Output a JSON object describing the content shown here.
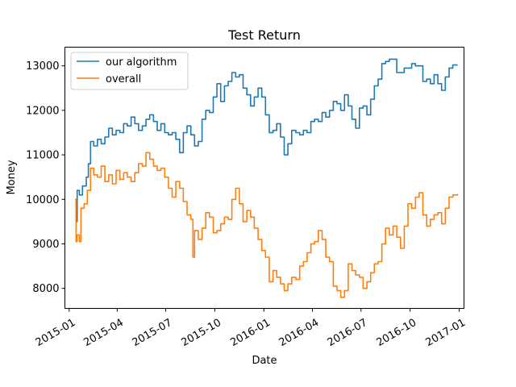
{
  "chart_data": {
    "type": "line",
    "title": "Test Return",
    "xlabel": "Date",
    "ylabel": "Money",
    "x_axis": "date",
    "xlim": [
      "2014-12-24",
      "2017-01-10"
    ],
    "ylim": [
      7550,
      13420
    ],
    "x_ticks": [
      "2015-01",
      "2015-04",
      "2015-07",
      "2015-10",
      "2016-01",
      "2016-04",
      "2016-07",
      "2016-10",
      "2017-01"
    ],
    "y_ticks": [
      8000,
      9000,
      10000,
      11000,
      12000,
      13000
    ],
    "grid": false,
    "legend": "upper left",
    "series": [
      {
        "name": "our algorithm",
        "color": "#1f77b4",
        "points": [
          [
            "2015-01-12",
            10000
          ],
          [
            "2015-01-14",
            9500
          ],
          [
            "2015-01-16",
            10200
          ],
          [
            "2015-01-20",
            10100
          ],
          [
            "2015-01-26",
            10300
          ],
          [
            "2015-02-02",
            10500
          ],
          [
            "2015-02-06",
            10800
          ],
          [
            "2015-02-10",
            11300
          ],
          [
            "2015-02-16",
            11200
          ],
          [
            "2015-02-23",
            11350
          ],
          [
            "2015-03-02",
            11250
          ],
          [
            "2015-03-09",
            11400
          ],
          [
            "2015-03-16",
            11600
          ],
          [
            "2015-03-23",
            11450
          ],
          [
            "2015-03-30",
            11550
          ],
          [
            "2015-04-06",
            11500
          ],
          [
            "2015-04-13",
            11700
          ],
          [
            "2015-04-20",
            11650
          ],
          [
            "2015-04-27",
            11850
          ],
          [
            "2015-05-04",
            11700
          ],
          [
            "2015-05-11",
            11550
          ],
          [
            "2015-05-18",
            11650
          ],
          [
            "2015-05-25",
            11800
          ],
          [
            "2015-06-01",
            11900
          ],
          [
            "2015-06-08",
            11750
          ],
          [
            "2015-06-15",
            11550
          ],
          [
            "2015-06-22",
            11700
          ],
          [
            "2015-06-29",
            11500
          ],
          [
            "2015-07-06",
            11450
          ],
          [
            "2015-07-13",
            11500
          ],
          [
            "2015-07-20",
            11350
          ],
          [
            "2015-07-27",
            11050
          ],
          [
            "2015-08-03",
            11500
          ],
          [
            "2015-08-10",
            11650
          ],
          [
            "2015-08-17",
            11450
          ],
          [
            "2015-08-24",
            11200
          ],
          [
            "2015-08-31",
            11300
          ],
          [
            "2015-09-07",
            11800
          ],
          [
            "2015-09-14",
            12000
          ],
          [
            "2015-09-21",
            11950
          ],
          [
            "2015-09-28",
            12300
          ],
          [
            "2015-10-05",
            12600
          ],
          [
            "2015-10-12",
            12200
          ],
          [
            "2015-10-19",
            12550
          ],
          [
            "2015-10-26",
            12650
          ],
          [
            "2015-11-02",
            12850
          ],
          [
            "2015-11-09",
            12750
          ],
          [
            "2015-11-16",
            12800
          ],
          [
            "2015-11-23",
            12500
          ],
          [
            "2015-11-30",
            12350
          ],
          [
            "2015-12-07",
            12100
          ],
          [
            "2015-12-14",
            12300
          ],
          [
            "2015-12-21",
            12500
          ],
          [
            "2015-12-28",
            12300
          ],
          [
            "2016-01-04",
            11900
          ],
          [
            "2016-01-11",
            11500
          ],
          [
            "2016-01-18",
            11550
          ],
          [
            "2016-01-25",
            11700
          ],
          [
            "2016-02-01",
            11400
          ],
          [
            "2016-02-08",
            11000
          ],
          [
            "2016-02-15",
            11250
          ],
          [
            "2016-02-22",
            11550
          ],
          [
            "2016-03-01",
            11500
          ],
          [
            "2016-03-08",
            11450
          ],
          [
            "2016-03-15",
            11550
          ],
          [
            "2016-03-22",
            11500
          ],
          [
            "2016-03-29",
            11750
          ],
          [
            "2016-04-05",
            11800
          ],
          [
            "2016-04-12",
            11750
          ],
          [
            "2016-04-19",
            11950
          ],
          [
            "2016-04-26",
            11850
          ],
          [
            "2016-05-03",
            12000
          ],
          [
            "2016-05-10",
            12200
          ],
          [
            "2016-05-17",
            12150
          ],
          [
            "2016-05-24",
            12000
          ],
          [
            "2016-05-31",
            12350
          ],
          [
            "2016-06-07",
            12100
          ],
          [
            "2016-06-14",
            11800
          ],
          [
            "2016-06-21",
            11600
          ],
          [
            "2016-06-28",
            12050
          ],
          [
            "2016-07-05",
            12100
          ],
          [
            "2016-07-12",
            11900
          ],
          [
            "2016-07-19",
            12250
          ],
          [
            "2016-07-26",
            12550
          ],
          [
            "2016-08-02",
            12700
          ],
          [
            "2016-08-09",
            13050
          ],
          [
            "2016-08-16",
            13100
          ],
          [
            "2016-08-23",
            13150
          ],
          [
            "2016-08-30",
            13150
          ],
          [
            "2016-09-06",
            12850
          ],
          [
            "2016-09-13",
            12850
          ],
          [
            "2016-09-20",
            12950
          ],
          [
            "2016-09-27",
            12950
          ],
          [
            "2016-10-04",
            13050
          ],
          [
            "2016-10-11",
            13000
          ],
          [
            "2016-10-18",
            13000
          ],
          [
            "2016-10-25",
            12650
          ],
          [
            "2016-11-01",
            12700
          ],
          [
            "2016-11-08",
            12600
          ],
          [
            "2016-11-15",
            12800
          ],
          [
            "2016-11-22",
            12600
          ],
          [
            "2016-11-29",
            12450
          ],
          [
            "2016-12-06",
            12750
          ],
          [
            "2016-12-13",
            12950
          ],
          [
            "2016-12-20",
            13020
          ],
          [
            "2016-12-29",
            13020
          ]
        ]
      },
      {
        "name": "overall",
        "color": "#ff7f0e",
        "points": [
          [
            "2015-01-12",
            10000
          ],
          [
            "2015-01-14",
            9050
          ],
          [
            "2015-01-16",
            9200
          ],
          [
            "2015-01-20",
            9050
          ],
          [
            "2015-01-23",
            9800
          ],
          [
            "2015-01-29",
            9900
          ],
          [
            "2015-02-04",
            10200
          ],
          [
            "2015-02-10",
            10700
          ],
          [
            "2015-02-16",
            10550
          ],
          [
            "2015-02-23",
            10500
          ],
          [
            "2015-03-02",
            10750
          ],
          [
            "2015-03-09",
            10400
          ],
          [
            "2015-03-16",
            10550
          ],
          [
            "2015-03-23",
            10350
          ],
          [
            "2015-03-30",
            10650
          ],
          [
            "2015-04-06",
            10450
          ],
          [
            "2015-04-13",
            10600
          ],
          [
            "2015-04-20",
            10500
          ],
          [
            "2015-04-27",
            10400
          ],
          [
            "2015-05-04",
            10600
          ],
          [
            "2015-05-11",
            10800
          ],
          [
            "2015-05-18",
            10750
          ],
          [
            "2015-05-25",
            11050
          ],
          [
            "2015-06-01",
            10900
          ],
          [
            "2015-06-08",
            10750
          ],
          [
            "2015-06-15",
            10650
          ],
          [
            "2015-06-22",
            10700
          ],
          [
            "2015-06-29",
            10500
          ],
          [
            "2015-07-06",
            10250
          ],
          [
            "2015-07-13",
            10050
          ],
          [
            "2015-07-20",
            10400
          ],
          [
            "2015-07-27",
            10250
          ],
          [
            "2015-08-03",
            9950
          ],
          [
            "2015-08-10",
            9650
          ],
          [
            "2015-08-17",
            9550
          ],
          [
            "2015-08-21",
            8700
          ],
          [
            "2015-08-24",
            9300
          ],
          [
            "2015-08-31",
            9100
          ],
          [
            "2015-09-07",
            9350
          ],
          [
            "2015-09-14",
            9700
          ],
          [
            "2015-09-21",
            9600
          ],
          [
            "2015-09-28",
            9250
          ],
          [
            "2015-10-05",
            9300
          ],
          [
            "2015-10-12",
            9450
          ],
          [
            "2015-10-19",
            9600
          ],
          [
            "2015-10-26",
            9550
          ],
          [
            "2015-11-02",
            10000
          ],
          [
            "2015-11-09",
            10250
          ],
          [
            "2015-11-16",
            9900
          ],
          [
            "2015-11-23",
            9500
          ],
          [
            "2015-11-30",
            9750
          ],
          [
            "2015-12-07",
            9600
          ],
          [
            "2015-12-14",
            9350
          ],
          [
            "2015-12-21",
            9100
          ],
          [
            "2015-12-28",
            8850
          ],
          [
            "2016-01-04",
            8700
          ],
          [
            "2016-01-11",
            8150
          ],
          [
            "2016-01-18",
            8400
          ],
          [
            "2016-01-25",
            8250
          ],
          [
            "2016-02-01",
            8100
          ],
          [
            "2016-02-08",
            7950
          ],
          [
            "2016-02-15",
            8100
          ],
          [
            "2016-02-22",
            8250
          ],
          [
            "2016-03-01",
            8200
          ],
          [
            "2016-03-08",
            8500
          ],
          [
            "2016-03-15",
            8600
          ],
          [
            "2016-03-22",
            8800
          ],
          [
            "2016-03-29",
            9000
          ],
          [
            "2016-04-05",
            9050
          ],
          [
            "2016-04-12",
            9300
          ],
          [
            "2016-04-19",
            9100
          ],
          [
            "2016-04-26",
            8700
          ],
          [
            "2016-05-03",
            8600
          ],
          [
            "2016-05-10",
            8050
          ],
          [
            "2016-05-17",
            7950
          ],
          [
            "2016-05-24",
            7800
          ],
          [
            "2016-05-31",
            7950
          ],
          [
            "2016-06-07",
            8550
          ],
          [
            "2016-06-14",
            8400
          ],
          [
            "2016-06-21",
            8300
          ],
          [
            "2016-06-28",
            8250
          ],
          [
            "2016-07-05",
            8000
          ],
          [
            "2016-07-12",
            8150
          ],
          [
            "2016-07-19",
            8350
          ],
          [
            "2016-07-26",
            8550
          ],
          [
            "2016-08-02",
            8600
          ],
          [
            "2016-08-09",
            9000
          ],
          [
            "2016-08-16",
            9350
          ],
          [
            "2016-08-23",
            9200
          ],
          [
            "2016-08-30",
            9400
          ],
          [
            "2016-09-06",
            9150
          ],
          [
            "2016-09-13",
            8900
          ],
          [
            "2016-09-20",
            9400
          ],
          [
            "2016-09-27",
            9900
          ],
          [
            "2016-10-04",
            9800
          ],
          [
            "2016-10-11",
            10050
          ],
          [
            "2016-10-18",
            10150
          ],
          [
            "2016-10-25",
            9650
          ],
          [
            "2016-11-01",
            9400
          ],
          [
            "2016-11-08",
            9550
          ],
          [
            "2016-11-15",
            9650
          ],
          [
            "2016-11-22",
            9700
          ],
          [
            "2016-11-29",
            9450
          ],
          [
            "2016-12-06",
            9800
          ],
          [
            "2016-12-13",
            10050
          ],
          [
            "2016-12-20",
            10100
          ],
          [
            "2016-12-29",
            10120
          ]
        ]
      }
    ]
  }
}
